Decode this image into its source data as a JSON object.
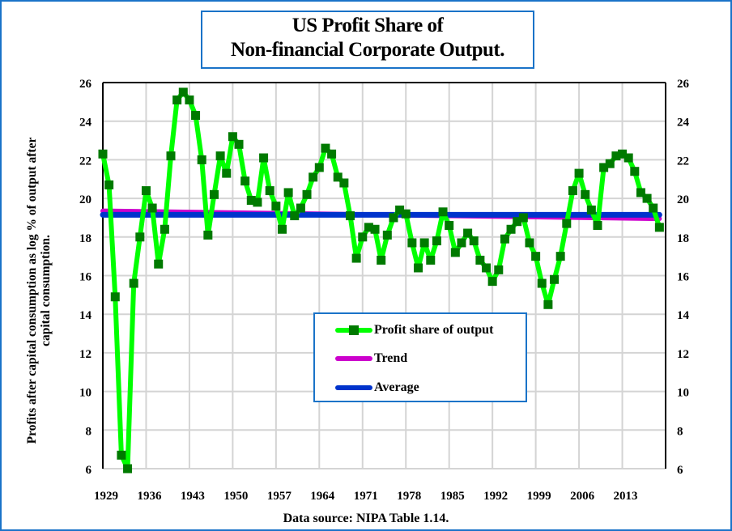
{
  "chart_data": {
    "type": "line",
    "title": "US Profit Share of\nNon-financial Corporate Output.",
    "title_lines": [
      "US Profit Share of",
      "Non-financial Corporate Output."
    ],
    "ylabel_lines": [
      "Profits after capital consumption as log % of output after",
      "capital consumption."
    ],
    "xlabel": "Data source: NIPA  Table  1.14.",
    "x_tick_labels": [
      "1929",
      "1936",
      "1943",
      "1950",
      "1957",
      "1964",
      "1971",
      "1978",
      "1985",
      "1992",
      "1999",
      "2006",
      "2013"
    ],
    "y_ticks": [
      6,
      8,
      10,
      12,
      14,
      16,
      18,
      20,
      22,
      24,
      26
    ],
    "ylim": [
      6,
      26
    ],
    "xlim": [
      1929,
      2020
    ],
    "grid": true,
    "secondary_y_axis": true,
    "legend_position": "center-bottom",
    "x": [
      1929,
      1930,
      1931,
      1932,
      1933,
      1934,
      1935,
      1936,
      1937,
      1938,
      1939,
      1940,
      1941,
      1942,
      1943,
      1944,
      1945,
      1946,
      1947,
      1948,
      1949,
      1950,
      1951,
      1952,
      1953,
      1954,
      1955,
      1956,
      1957,
      1958,
      1959,
      1960,
      1961,
      1962,
      1963,
      1964,
      1965,
      1966,
      1967,
      1968,
      1969,
      1970,
      1971,
      1972,
      1973,
      1974,
      1975,
      1976,
      1977,
      1978,
      1979,
      1980,
      1981,
      1982,
      1983,
      1984,
      1985,
      1986,
      1987,
      1988,
      1989,
      1990,
      1991,
      1992,
      1993,
      1994,
      1995,
      1996,
      1997,
      1998,
      1999,
      2000,
      2001,
      2002,
      2003,
      2004,
      2005,
      2006,
      2007,
      2008,
      2009,
      2010,
      2011,
      2012,
      2013,
      2014,
      2015,
      2016,
      2017,
      2018,
      2019
    ],
    "series": [
      {
        "name": "Profit share of output",
        "color": "#00ff00",
        "marker_color": "#007a00",
        "values": [
          22.3,
          20.7,
          14.9,
          6.7,
          6.0,
          15.6,
          18.0,
          20.4,
          19.5,
          16.6,
          18.4,
          22.2,
          25.1,
          25.5,
          25.1,
          24.3,
          22.0,
          18.1,
          20.2,
          22.2,
          21.3,
          23.2,
          22.8,
          20.9,
          19.9,
          19.8,
          22.1,
          20.4,
          19.6,
          18.4,
          20.3,
          19.1,
          19.5,
          20.2,
          21.1,
          21.6,
          22.6,
          22.3,
          21.1,
          20.8,
          19.1,
          16.9,
          18.0,
          18.5,
          18.4,
          16.8,
          18.1,
          19.0,
          19.4,
          19.2,
          17.7,
          16.4,
          17.7,
          16.8,
          17.8,
          19.3,
          18.6,
          17.2,
          17.7,
          18.2,
          17.8,
          16.8,
          16.4,
          15.7,
          16.3,
          17.9,
          18.4,
          18.8,
          19.0,
          17.7,
          17.0,
          15.6,
          14.5,
          15.8,
          17.0,
          18.7,
          20.4,
          21.3,
          20.2,
          19.4,
          18.6,
          21.6,
          21.8,
          22.2,
          22.3,
          22.1,
          21.4,
          20.3,
          20.0,
          19.5,
          18.5
        ]
      },
      {
        "name": "Trend",
        "color": "#cc00cc",
        "values_endpoints": [
          19.35,
          18.95
        ]
      },
      {
        "name": "Average",
        "color": "#0033cc",
        "value": 19.15
      }
    ]
  }
}
